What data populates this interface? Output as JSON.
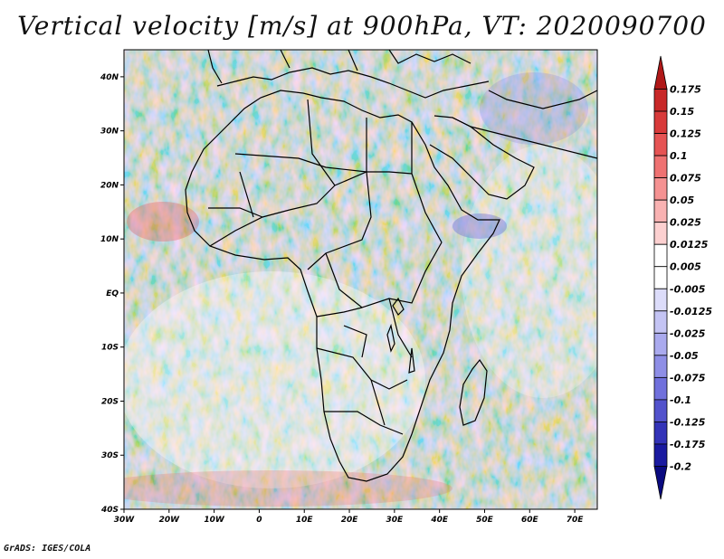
{
  "title": "Vertical velocity [m/s] at 900hPa, VT: 2020090700",
  "credit": "GrADS: IGES/COLA",
  "map": {
    "lat_labels": [
      "40N",
      "30N",
      "20N",
      "10N",
      "EQ",
      "10S",
      "20S",
      "30S",
      "40S"
    ],
    "lon_labels": [
      "30W",
      "20W",
      "10W",
      "0",
      "10E",
      "20E",
      "30E",
      "40E",
      "50E",
      "60E",
      "70E"
    ],
    "lon_range": [
      -30,
      75
    ],
    "lat_range": [
      -40,
      45
    ]
  },
  "colorbar": {
    "levels": [
      "0.175",
      "0.15",
      "0.125",
      "0.1",
      "0.075",
      "0.05",
      "0.025",
      "0.0125",
      "0.005",
      "-0.005",
      "-0.0125",
      "-0.025",
      "-0.05",
      "-0.075",
      "-0.1",
      "-0.125",
      "-0.175",
      "-0.2"
    ],
    "colors": [
      "#b01818",
      "#c82828",
      "#d83a3a",
      "#e65454",
      "#ef7272",
      "#f59292",
      "#f9b2b2",
      "#fcd0d0",
      "#ffffff",
      "#ffffff",
      "#dcdcfa",
      "#c4c4f4",
      "#aaaaee",
      "#8e8ee6",
      "#7070dc",
      "#5252cc",
      "#3333b8",
      "#1a1aa0",
      "#0a0a80"
    ]
  }
}
